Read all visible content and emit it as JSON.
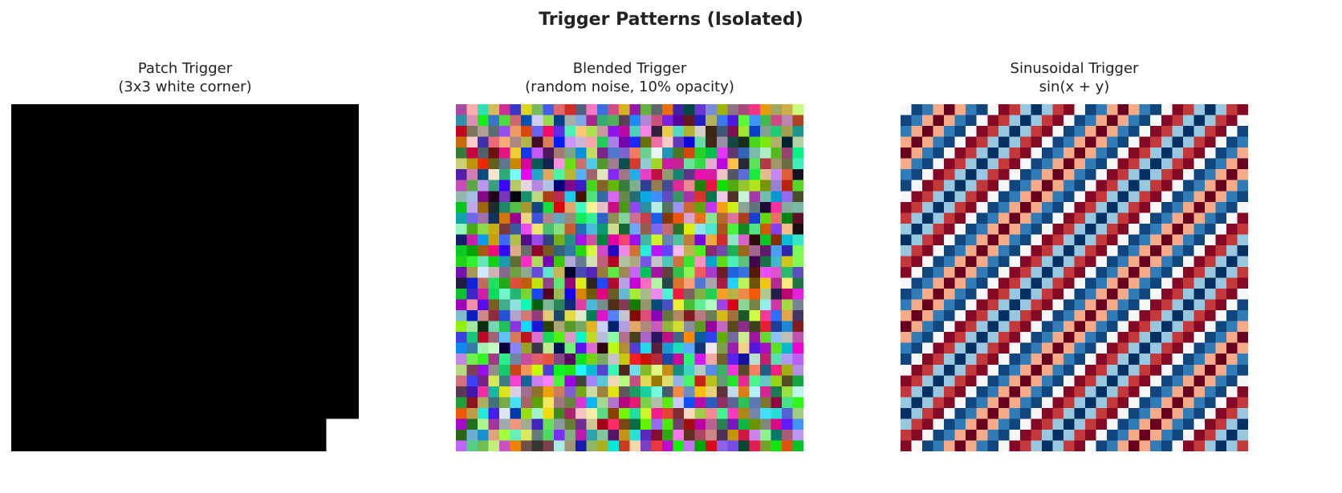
{
  "chart_data": [
    {
      "type": "heatmap",
      "title": "Patch Trigger",
      "subtitle": "(3x3 white corner)",
      "shape": [
        32,
        32
      ],
      "pattern": "black background, 3x3 white patch in bottom-right corner",
      "colors": {
        "background": "#000000",
        "patch": "#ffffff"
      },
      "axes": "off"
    },
    {
      "type": "heatmap",
      "title": "Blended Trigger",
      "subtitle": "(random noise, 10% opacity)",
      "shape": [
        32,
        32
      ],
      "pattern": "random RGB noise",
      "axes": "off"
    },
    {
      "type": "heatmap",
      "title": "Sinusoidal Trigger",
      "subtitle": "sin(x + y)",
      "shape": [
        32,
        32
      ],
      "colormap": "RdBu",
      "value_range": [
        -1,
        1
      ],
      "axes": "off"
    }
  ],
  "figure": {
    "title": "Trigger Patterns (Isolated)"
  }
}
